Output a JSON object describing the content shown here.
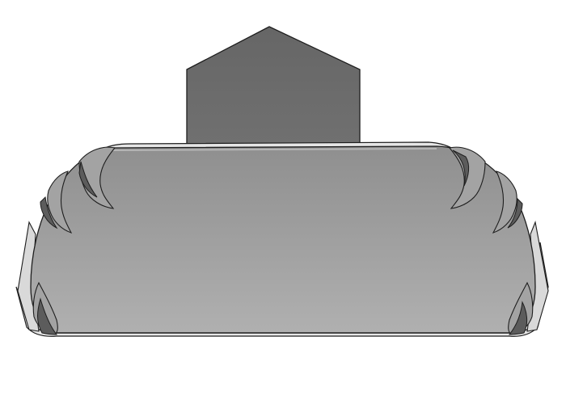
{
  "scene": {
    "subject": "sofa-illustration",
    "colors": {
      "background": "#ffffff",
      "outline": "#1e1e1e",
      "back_cushion_top": "#666666",
      "back_cushion_bottom": "#707070",
      "body_top": "#8f8f8f",
      "body_bottom": "#b0b0b0",
      "ruffle_shadow": "#5c5c5c",
      "ruffle_light": "#a3a3a3",
      "base_frame": "#e6e6e6",
      "side_frame": "#d9d9d9"
    }
  }
}
